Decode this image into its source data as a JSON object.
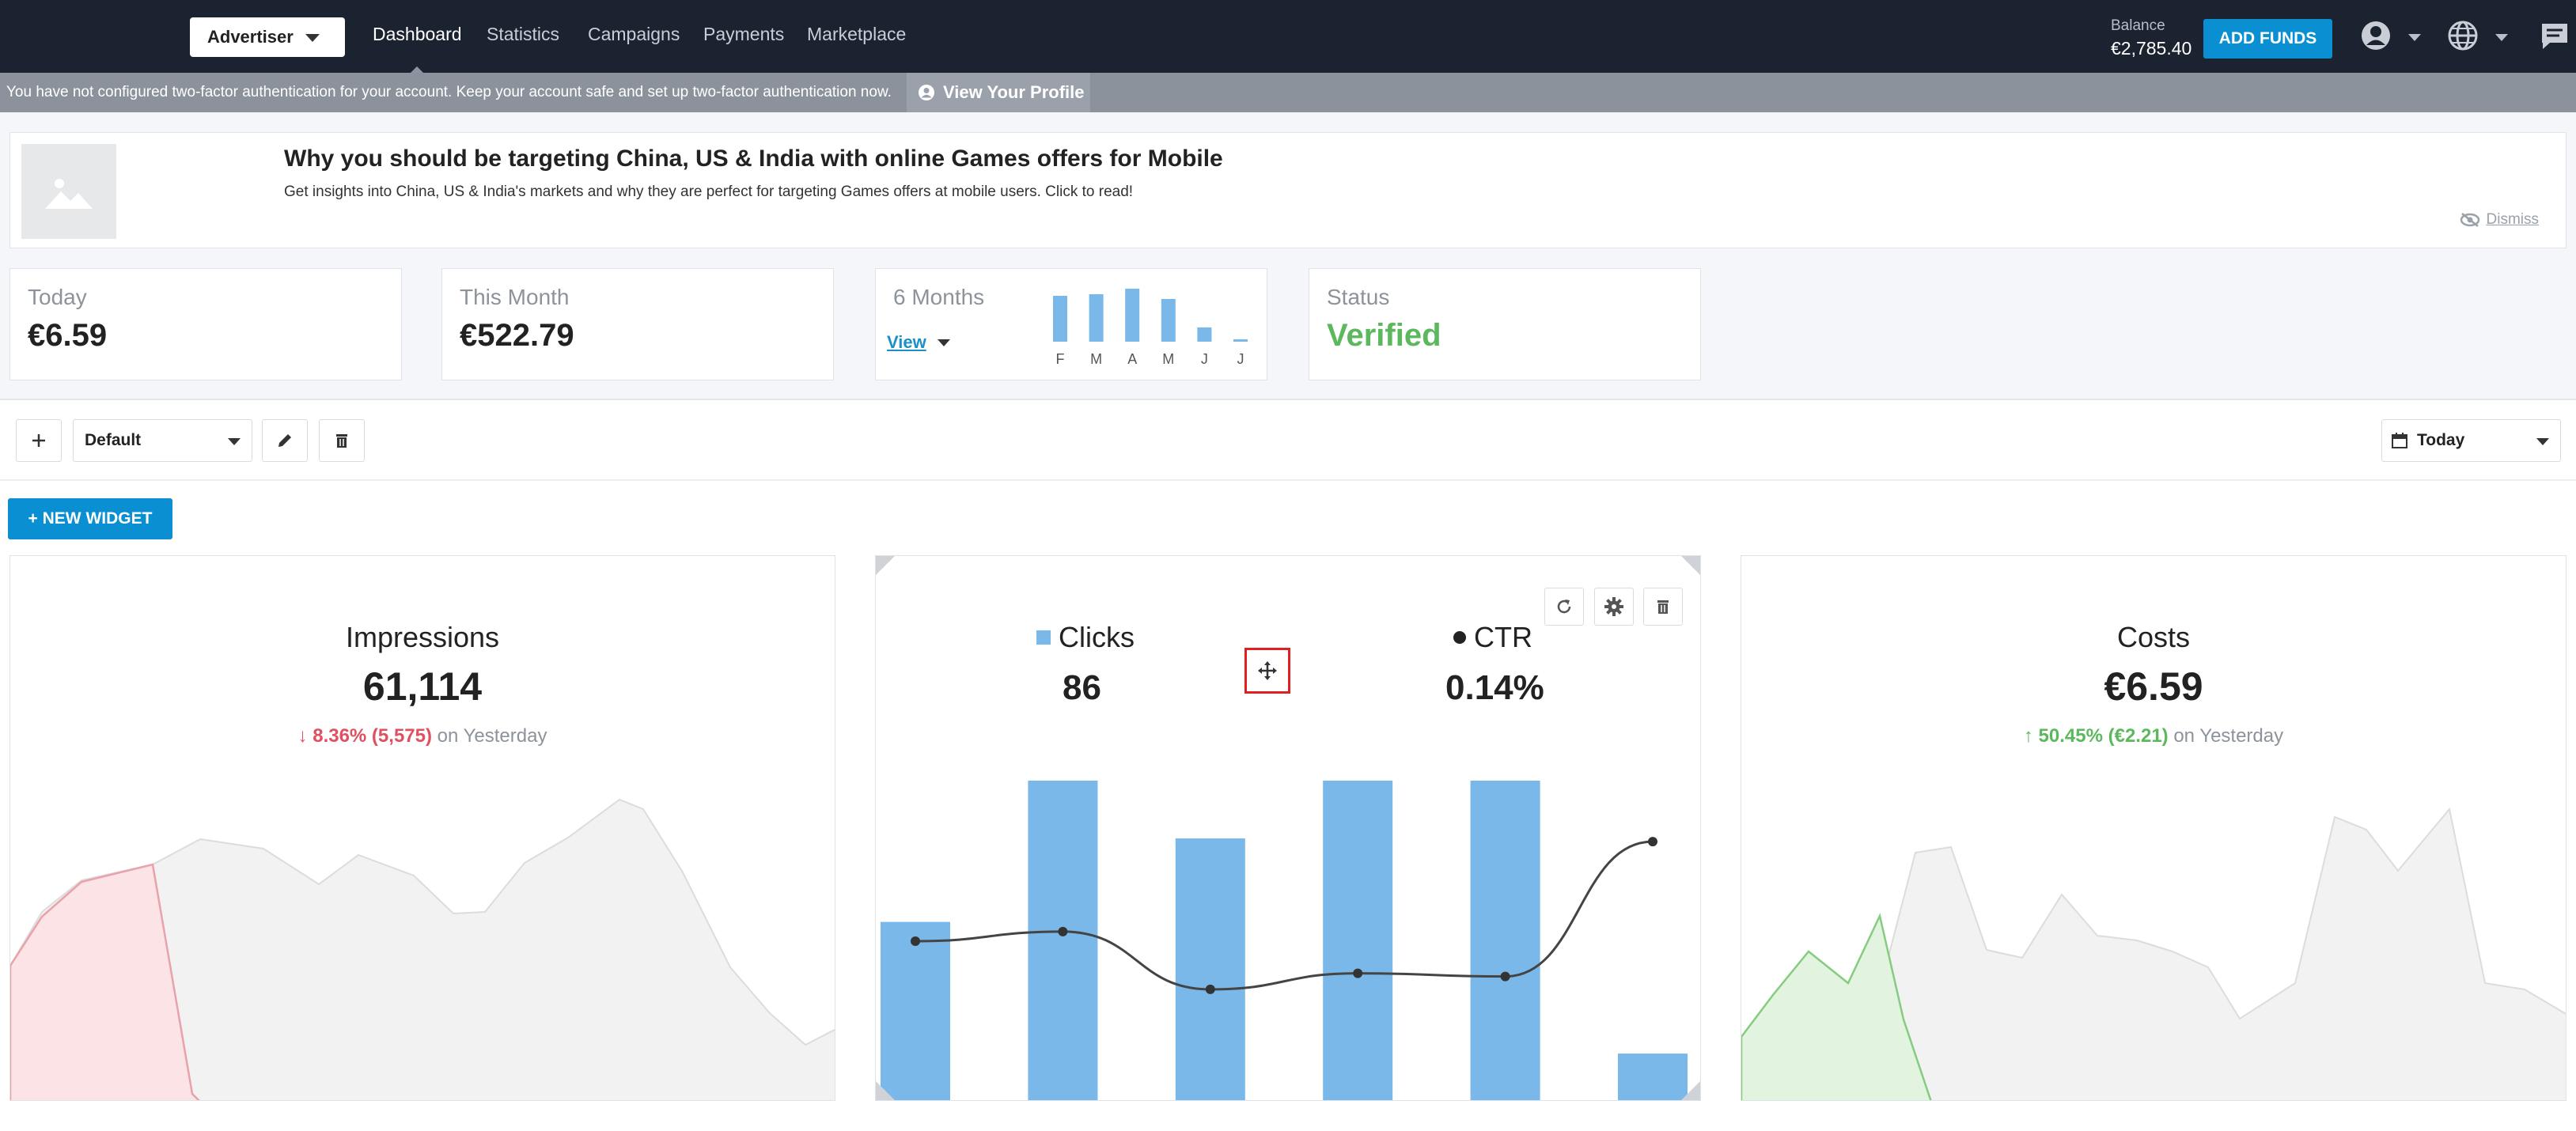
{
  "nav": {
    "role": "Advertiser",
    "links": [
      "Dashboard",
      "Statistics",
      "Campaigns",
      "Payments",
      "Marketplace"
    ],
    "active": "Dashboard",
    "balance_label": "Balance",
    "balance_value": "€2,785.40",
    "add_funds": "ADD FUNDS",
    "icons": [
      "user-icon",
      "globe-icon",
      "chat-icon"
    ]
  },
  "twofa": {
    "message": "You have not configured two-factor authentication for your account. Keep your account safe and set up two-factor authentication now.",
    "link": "View Your Profile"
  },
  "promo": {
    "title": "Why you should be targeting China, US & India with online Games offers for Mobile",
    "description": "Get insights into China, US & India's markets and why they are perfect for targeting Games offers at mobile users. Click to read!",
    "dismiss": "Dismiss"
  },
  "stats": {
    "today_label": "Today",
    "today_value": "€6.59",
    "month_label": "This Month",
    "month_value": "€522.79",
    "six_label": "6 Months",
    "six_view": "View",
    "status_label": "Status",
    "status_value": "Verified"
  },
  "toolbar": {
    "dashboard": "Default",
    "date_range": "Today",
    "new_widget": "+ NEW WIDGET"
  },
  "widgets": {
    "impressions": {
      "title": "Impressions",
      "value": "61,114",
      "change": "↓ 8.36% (5,575)",
      "change_suffix": "on Yesterday"
    },
    "clicks": {
      "clicks_label": "Clicks",
      "clicks_value": "86",
      "ctr_label": "CTR",
      "ctr_value": "0.14%"
    },
    "costs": {
      "title": "Costs",
      "value": "€6.59",
      "change": "↑ 50.45% (€2.21)",
      "change_suffix": "on Yesterday"
    }
  },
  "colors": {
    "nav_bg": "#1b2330",
    "accent": "#0a8fd2",
    "bar": "#7ab8ea",
    "success": "#5cb85c",
    "danger": "#e05060"
  },
  "chart_data": [
    {
      "type": "bar",
      "title": "6 Months",
      "categories": [
        "F",
        "M",
        "A",
        "M",
        "J",
        "J"
      ],
      "values": [
        58,
        60,
        67,
        54,
        18,
        3
      ]
    },
    {
      "type": "bar",
      "title": "Clicks / CTR",
      "series": [
        {
          "name": "Clicks",
          "values": [
            56,
            100,
            82,
            100,
            100,
            15
          ]
        },
        {
          "name": "CTR",
          "values": [
            50,
            53,
            35,
            40,
            39,
            81
          ]
        }
      ]
    }
  ]
}
